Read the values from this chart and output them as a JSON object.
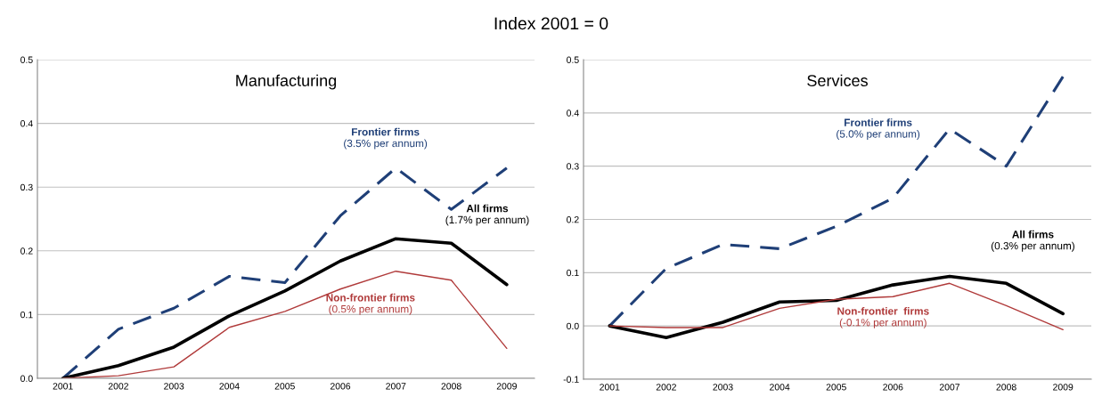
{
  "chart_data": [
    {
      "type": "line",
      "title": "Manufacturing",
      "subtitle": "Index 2001 = 0",
      "categories": [
        "2001",
        "2002",
        "2003",
        "2004",
        "2005",
        "2006",
        "2007",
        "2008",
        "2009"
      ],
      "series": [
        {
          "name": "Frontier firms",
          "color": "#1f3f77",
          "line_style": "dashed",
          "values": [
            0,
            0.077,
            0.11,
            0.16,
            0.15,
            0.255,
            0.33,
            0.265,
            0.33
          ]
        },
        {
          "name": "All firms",
          "color": "#000000",
          "line_style": "solid",
          "values": [
            0,
            0.02,
            0.049,
            0.098,
            0.137,
            0.184,
            0.219,
            0.212,
            0.147
          ]
        },
        {
          "name": "Non-frontier firms",
          "color": "#b03a3a",
          "line_style": "solid",
          "values": [
            0,
            0.004,
            0.018,
            0.08,
            0.105,
            0.14,
            0.168,
            0.154,
            0.047
          ]
        }
      ],
      "annotations": [
        "(3.5% per annum)",
        "(1.7% per annum)",
        "(0.5% per annum)"
      ],
      "ylim": [
        0,
        0.5
      ],
      "yticks": [
        {
          "value": 0,
          "label": "0.0"
        },
        0.1,
        0.2,
        0.3,
        0.4,
        0.5
      ],
      "grid": "y",
      "legend": false,
      "marker": "none"
    },
    {
      "type": "line",
      "title": "Services",
      "categories": [
        "2001",
        "2002",
        "2003",
        "2004",
        "2005",
        "2006",
        "2007",
        "2008",
        "2009"
      ],
      "series": [
        {
          "name": "Frontier firms",
          "color": "#1f3f77",
          "line_style": "dashed",
          "values": [
            0,
            0.108,
            0.153,
            0.145,
            0.187,
            0.24,
            0.37,
            0.3,
            0.468
          ]
        },
        {
          "name": "All firms",
          "color": "#000000",
          "line_style": "solid",
          "values": [
            0,
            -0.022,
            0.007,
            0.045,
            0.048,
            0.077,
            0.093,
            0.08,
            0.023
          ]
        },
        {
          "name": "Non-frontier  firms",
          "color": "#b03a3a",
          "line_style": "solid",
          "values": [
            0,
            -0.003,
            -0.003,
            0.033,
            0.05,
            0.055,
            0.08,
            0.038,
            -0.007
          ]
        }
      ],
      "annotations": [
        "(5.0% per annum)",
        "(0.3% per annum)",
        "(-0.1% per annum)"
      ],
      "ylim": [
        -0.1,
        0.5
      ],
      "yticks": [
        -0.1,
        {
          "value": 0,
          "label": "0.0"
        },
        0.1,
        0.2,
        0.3,
        0.4,
        0.5
      ],
      "grid": "y",
      "legend": false,
      "marker": "none"
    }
  ]
}
